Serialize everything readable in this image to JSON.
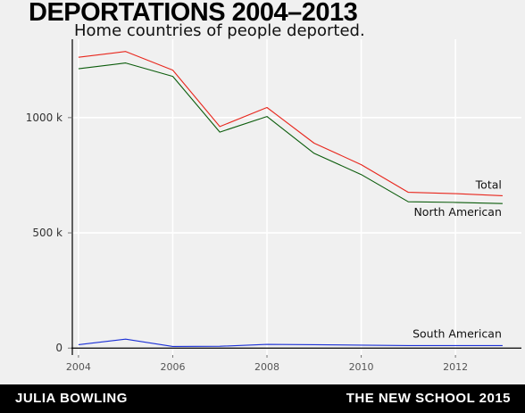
{
  "header": {
    "title": "DEPORTATIONS 2004–2013",
    "subtitle": "Home countries of people deported."
  },
  "footer": {
    "author": "JULIA BOWLING",
    "organization": "THE NEW SCHOOL 2015"
  },
  "chart_data": {
    "type": "line",
    "x": [
      2004,
      2005,
      2006,
      2007,
      2008,
      2009,
      2010,
      2011,
      2012,
      2013
    ],
    "series": [
      {
        "name": "Total",
        "color": "#e8261c",
        "values": [
          1262000,
          1287000,
          1206000,
          961000,
          1044000,
          889000,
          796000,
          676000,
          670000,
          661000
        ]
      },
      {
        "name": "North American",
        "color": "#0b5c0b",
        "values": [
          1212000,
          1237000,
          1179000,
          937000,
          1005000,
          845000,
          753000,
          635000,
          632000,
          627000
        ]
      },
      {
        "name": "South American",
        "color": "#1a2fd6",
        "values": [
          15000,
          39000,
          7000,
          8000,
          16000,
          15000,
          13000,
          11000,
          11000,
          11000
        ]
      }
    ],
    "xlim": [
      2003.85,
      2013.4
    ],
    "ylim": [
      -30000,
      1340000
    ],
    "x_ticks": [
      2004,
      2006,
      2008,
      2010,
      2012
    ],
    "x_tick_labels": [
      "2004",
      "2006",
      "2008",
      "2010",
      "2012"
    ],
    "y_ticks": [
      0,
      500000,
      1000000
    ],
    "y_tick_labels": [
      "0",
      "500 k",
      "1000 k"
    ],
    "grid": true,
    "legend": "direct-labels"
  }
}
